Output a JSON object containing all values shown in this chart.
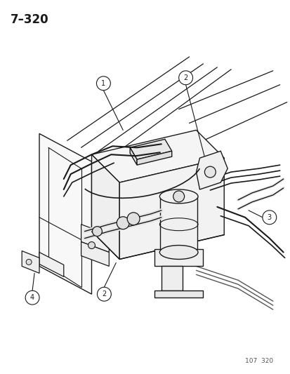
{
  "title": "7–320",
  "footer": "107  320",
  "bg": "#ffffff",
  "lc": "#1a1a1a",
  "fig_width": 4.14,
  "fig_height": 5.33,
  "dpi": 100
}
